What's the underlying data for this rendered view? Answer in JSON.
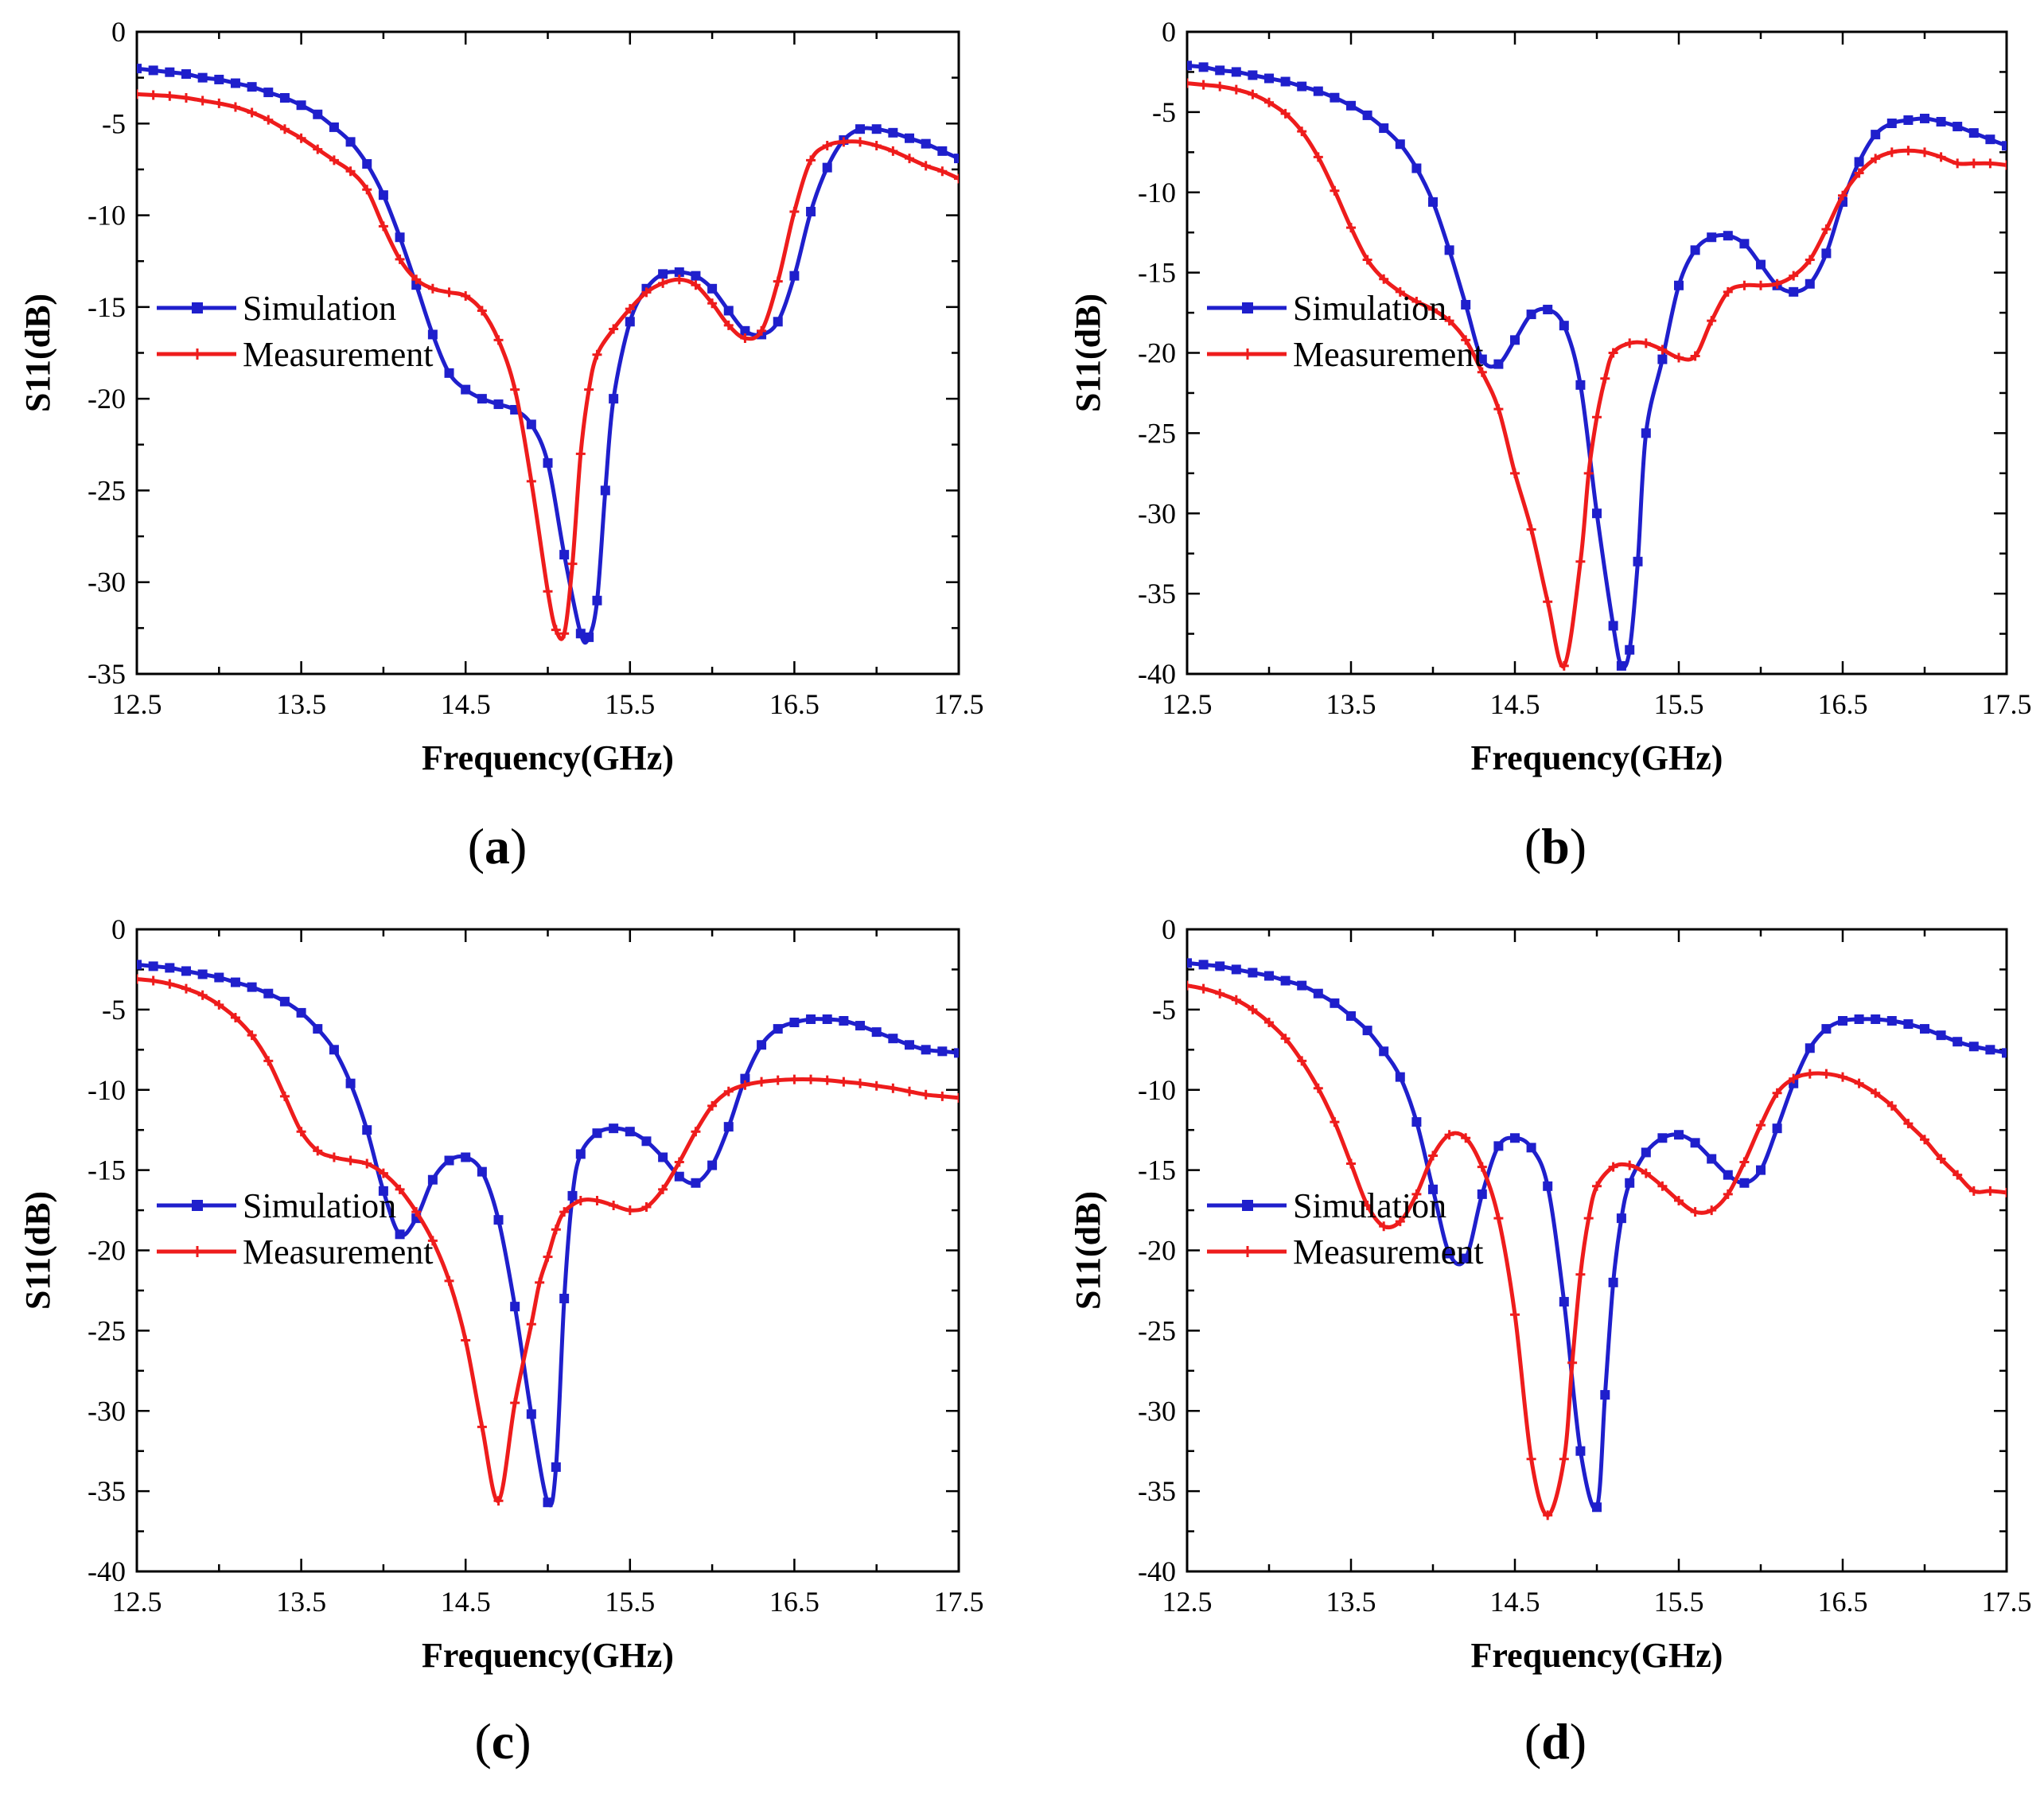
{
  "colors": {
    "simulation": "#1f1fcc",
    "measurement": "#ee1c1c"
  },
  "chart_data": [
    {
      "id": "a",
      "type": "line",
      "panel_label": "a",
      "xlabel": "Frequency(GHz)",
      "ylabel": "S11(dB)",
      "xlim": [
        12.5,
        17.5
      ],
      "ylim": [
        -35,
        0
      ],
      "xticks": [
        "12.5",
        "13.5",
        "14.5",
        "15.5",
        "16.5",
        "17.5"
      ],
      "yticks": [
        "0",
        "-5",
        "-10",
        "-15",
        "-20",
        "-25",
        "-30",
        "-35"
      ],
      "legend_position": "lower-left",
      "series": [
        {
          "name": "Simulation",
          "marker": "square",
          "x": [
            12.5,
            12.6,
            12.7,
            12.8,
            12.9,
            13.0,
            13.1,
            13.2,
            13.3,
            13.4,
            13.5,
            13.6,
            13.7,
            13.8,
            13.9,
            14.0,
            14.1,
            14.2,
            14.3,
            14.4,
            14.5,
            14.6,
            14.7,
            14.8,
            14.9,
            15.0,
            15.1,
            15.2,
            15.25,
            15.3,
            15.35,
            15.4,
            15.5,
            15.6,
            15.7,
            15.8,
            15.9,
            16.0,
            16.1,
            16.2,
            16.3,
            16.4,
            16.5,
            16.6,
            16.7,
            16.8,
            16.9,
            17.0,
            17.1,
            17.2,
            17.3,
            17.4,
            17.5
          ],
          "y": [
            -2.0,
            -2.1,
            -2.2,
            -2.3,
            -2.5,
            -2.6,
            -2.8,
            -3.0,
            -3.3,
            -3.6,
            -4.0,
            -4.5,
            -5.2,
            -6.0,
            -7.2,
            -8.9,
            -11.2,
            -13.8,
            -16.5,
            -18.6,
            -19.5,
            -20.0,
            -20.3,
            -20.6,
            -21.4,
            -23.5,
            -28.5,
            -32.8,
            -33.0,
            -31.0,
            -25.0,
            -20.0,
            -15.8,
            -14.0,
            -13.2,
            -13.1,
            -13.3,
            -14.0,
            -15.2,
            -16.3,
            -16.5,
            -15.8,
            -13.3,
            -9.8,
            -7.4,
            -5.9,
            -5.3,
            -5.3,
            -5.5,
            -5.8,
            -6.1,
            -6.5,
            -6.9
          ]
        },
        {
          "name": "Measurement",
          "marker": "plus",
          "x": [
            12.5,
            12.6,
            12.7,
            12.8,
            12.9,
            13.0,
            13.1,
            13.2,
            13.3,
            13.4,
            13.5,
            13.6,
            13.7,
            13.8,
            13.9,
            14.0,
            14.1,
            14.2,
            14.3,
            14.4,
            14.5,
            14.6,
            14.7,
            14.8,
            14.9,
            15.0,
            15.05,
            15.1,
            15.15,
            15.2,
            15.25,
            15.3,
            15.4,
            15.5,
            15.6,
            15.7,
            15.8,
            15.9,
            16.0,
            16.1,
            16.2,
            16.3,
            16.4,
            16.5,
            16.6,
            16.7,
            16.8,
            16.9,
            17.0,
            17.1,
            17.2,
            17.3,
            17.4,
            17.5
          ],
          "y": [
            -3.4,
            -3.45,
            -3.5,
            -3.6,
            -3.75,
            -3.9,
            -4.1,
            -4.4,
            -4.8,
            -5.3,
            -5.8,
            -6.4,
            -7.0,
            -7.6,
            -8.6,
            -10.6,
            -12.4,
            -13.5,
            -14.0,
            -14.2,
            -14.4,
            -15.2,
            -16.8,
            -19.5,
            -24.5,
            -30.5,
            -32.6,
            -32.8,
            -29.0,
            -23.0,
            -19.5,
            -17.6,
            -16.2,
            -15.1,
            -14.2,
            -13.7,
            -13.5,
            -13.8,
            -14.8,
            -16.0,
            -16.7,
            -16.3,
            -13.6,
            -9.8,
            -7.0,
            -6.2,
            -6.0,
            -6.0,
            -6.2,
            -6.5,
            -6.9,
            -7.3,
            -7.6,
            -8.0
          ]
        }
      ]
    },
    {
      "id": "b",
      "type": "line",
      "panel_label": "b",
      "xlabel": "Frequency(GHz)",
      "ylabel": "S11(dB)",
      "xlim": [
        12.5,
        17.5
      ],
      "ylim": [
        -40,
        0
      ],
      "xticks": [
        "12.5",
        "13.5",
        "14.5",
        "15.5",
        "16.5",
        "17.5"
      ],
      "yticks": [
        "0",
        "-5",
        "-10",
        "-15",
        "-20",
        "-25",
        "-30",
        "-35",
        "-40"
      ],
      "legend_position": "lower-left",
      "series": [
        {
          "name": "Simulation",
          "marker": "square",
          "x": [
            12.5,
            12.6,
            12.7,
            12.8,
            12.9,
            13.0,
            13.1,
            13.2,
            13.3,
            13.4,
            13.5,
            13.6,
            13.7,
            13.8,
            13.9,
            14.0,
            14.1,
            14.2,
            14.3,
            14.4,
            14.5,
            14.6,
            14.7,
            14.8,
            14.9,
            15.0,
            15.1,
            15.15,
            15.2,
            15.25,
            15.3,
            15.4,
            15.5,
            15.6,
            15.7,
            15.8,
            15.9,
            16.0,
            16.1,
            16.2,
            16.3,
            16.4,
            16.5,
            16.6,
            16.7,
            16.8,
            16.9,
            17.0,
            17.1,
            17.2,
            17.3,
            17.4,
            17.5
          ],
          "y": [
            -2.1,
            -2.2,
            -2.4,
            -2.5,
            -2.7,
            -2.9,
            -3.1,
            -3.4,
            -3.7,
            -4.1,
            -4.6,
            -5.2,
            -6.0,
            -7.0,
            -8.5,
            -10.6,
            -13.6,
            -17.0,
            -20.4,
            -20.7,
            -19.2,
            -17.6,
            -17.3,
            -18.3,
            -22.0,
            -30.0,
            -37.0,
            -39.5,
            -38.5,
            -33.0,
            -25.0,
            -20.4,
            -15.8,
            -13.6,
            -12.8,
            -12.7,
            -13.2,
            -14.5,
            -15.8,
            -16.2,
            -15.7,
            -13.8,
            -10.6,
            -8.1,
            -6.4,
            -5.7,
            -5.5,
            -5.4,
            -5.6,
            -5.9,
            -6.3,
            -6.7,
            -7.1
          ]
        },
        {
          "name": "Measurement",
          "marker": "plus",
          "x": [
            12.5,
            12.6,
            12.7,
            12.8,
            12.9,
            13.0,
            13.1,
            13.2,
            13.3,
            13.4,
            13.5,
            13.6,
            13.7,
            13.8,
            13.9,
            14.0,
            14.1,
            14.2,
            14.3,
            14.4,
            14.5,
            14.6,
            14.7,
            14.8,
            14.9,
            14.95,
            15.0,
            15.05,
            15.1,
            15.2,
            15.3,
            15.4,
            15.5,
            15.6,
            15.7,
            15.8,
            15.9,
            16.0,
            16.1,
            16.2,
            16.3,
            16.4,
            16.5,
            16.6,
            16.7,
            16.8,
            16.9,
            17.0,
            17.1,
            17.2,
            17.3,
            17.4,
            17.5
          ],
          "y": [
            -3.2,
            -3.3,
            -3.4,
            -3.6,
            -3.9,
            -4.4,
            -5.1,
            -6.2,
            -7.8,
            -9.9,
            -12.2,
            -14.2,
            -15.4,
            -16.2,
            -16.8,
            -17.3,
            -18.0,
            -19.2,
            -21.2,
            -23.5,
            -27.5,
            -31.0,
            -35.5,
            -39.5,
            -33.0,
            -27.5,
            -24.0,
            -21.6,
            -20.0,
            -19.4,
            -19.4,
            -19.8,
            -20.3,
            -20.2,
            -18.0,
            -16.2,
            -15.8,
            -15.8,
            -15.7,
            -15.2,
            -14.2,
            -12.3,
            -10.2,
            -8.8,
            -7.9,
            -7.5,
            -7.4,
            -7.5,
            -7.8,
            -8.2,
            -8.2,
            -8.2,
            -8.3
          ]
        }
      ]
    },
    {
      "id": "c",
      "type": "line",
      "panel_label": "c",
      "xlabel": "Frequency(GHz)",
      "ylabel": "S11(dB)",
      "xlim": [
        12.5,
        17.5
      ],
      "ylim": [
        -40,
        0
      ],
      "xticks": [
        "12.5",
        "13.5",
        "14.5",
        "15.5",
        "16.5",
        "17.5"
      ],
      "yticks": [
        "0",
        "-5",
        "-10",
        "-15",
        "-20",
        "-25",
        "-30",
        "-35",
        "-40"
      ],
      "legend_position": "lower-left",
      "series": [
        {
          "name": "Simulation",
          "marker": "square",
          "x": [
            12.5,
            12.6,
            12.7,
            12.8,
            12.9,
            13.0,
            13.1,
            13.2,
            13.3,
            13.4,
            13.5,
            13.6,
            13.7,
            13.8,
            13.9,
            14.0,
            14.1,
            14.2,
            14.3,
            14.4,
            14.5,
            14.6,
            14.7,
            14.8,
            14.9,
            15.0,
            15.05,
            15.1,
            15.15,
            15.2,
            15.3,
            15.4,
            15.5,
            15.6,
            15.7,
            15.8,
            15.9,
            16.0,
            16.1,
            16.2,
            16.3,
            16.4,
            16.5,
            16.6,
            16.7,
            16.8,
            16.9,
            17.0,
            17.1,
            17.2,
            17.3,
            17.4,
            17.5
          ],
          "y": [
            -2.2,
            -2.3,
            -2.4,
            -2.6,
            -2.8,
            -3.0,
            -3.3,
            -3.6,
            -4.0,
            -4.5,
            -5.2,
            -6.2,
            -7.5,
            -9.6,
            -12.5,
            -16.3,
            -19.0,
            -18.0,
            -15.6,
            -14.4,
            -14.2,
            -15.1,
            -18.1,
            -23.5,
            -30.2,
            -35.7,
            -33.5,
            -23.0,
            -16.6,
            -14.0,
            -12.7,
            -12.4,
            -12.6,
            -13.2,
            -14.2,
            -15.4,
            -15.8,
            -14.7,
            -12.3,
            -9.3,
            -7.2,
            -6.2,
            -5.8,
            -5.6,
            -5.6,
            -5.7,
            -6.0,
            -6.4,
            -6.8,
            -7.2,
            -7.5,
            -7.6,
            -7.7
          ]
        },
        {
          "name": "Measurement",
          "marker": "plus",
          "x": [
            12.5,
            12.6,
            12.7,
            12.8,
            12.9,
            13.0,
            13.1,
            13.2,
            13.3,
            13.4,
            13.5,
            13.6,
            13.7,
            13.8,
            13.9,
            14.0,
            14.1,
            14.2,
            14.3,
            14.4,
            14.5,
            14.6,
            14.7,
            14.8,
            14.9,
            14.95,
            15.0,
            15.05,
            15.1,
            15.2,
            15.3,
            15.4,
            15.5,
            15.6,
            15.7,
            15.8,
            15.9,
            16.0,
            16.1,
            16.2,
            16.3,
            16.4,
            16.5,
            16.6,
            16.7,
            16.8,
            16.9,
            17.0,
            17.1,
            17.2,
            17.3,
            17.4,
            17.5
          ],
          "y": [
            -3.1,
            -3.2,
            -3.4,
            -3.7,
            -4.1,
            -4.7,
            -5.5,
            -6.6,
            -8.2,
            -10.4,
            -12.6,
            -13.8,
            -14.2,
            -14.4,
            -14.6,
            -15.2,
            -16.2,
            -17.6,
            -19.4,
            -21.9,
            -25.6,
            -31.0,
            -35.6,
            -29.5,
            -24.6,
            -22.0,
            -20.4,
            -18.7,
            -17.6,
            -16.9,
            -16.9,
            -17.2,
            -17.5,
            -17.3,
            -16.2,
            -14.5,
            -12.6,
            -11.0,
            -10.1,
            -9.7,
            -9.5,
            -9.4,
            -9.35,
            -9.35,
            -9.4,
            -9.5,
            -9.6,
            -9.75,
            -9.9,
            -10.1,
            -10.3,
            -10.4,
            -10.5
          ]
        }
      ]
    },
    {
      "id": "d",
      "type": "line",
      "panel_label": "d",
      "xlabel": "Frequency(GHz)",
      "ylabel": "S11(dB)",
      "xlim": [
        12.5,
        17.5
      ],
      "ylim": [
        -40,
        0
      ],
      "xticks": [
        "12.5",
        "13.5",
        "14.5",
        "15.5",
        "16.5",
        "17.5"
      ],
      "yticks": [
        "0",
        "-5",
        "-10",
        "-15",
        "-20",
        "-25",
        "-30",
        "-35",
        "-40"
      ],
      "legend_position": "lower-left",
      "series": [
        {
          "name": "Simulation",
          "marker": "square",
          "x": [
            12.5,
            12.6,
            12.7,
            12.8,
            12.9,
            13.0,
            13.1,
            13.2,
            13.3,
            13.4,
            13.5,
            13.6,
            13.7,
            13.8,
            13.9,
            14.0,
            14.1,
            14.2,
            14.3,
            14.4,
            14.5,
            14.6,
            14.7,
            14.8,
            14.9,
            15.0,
            15.05,
            15.1,
            15.15,
            15.2,
            15.3,
            15.4,
            15.5,
            15.6,
            15.7,
            15.8,
            15.9,
            16.0,
            16.1,
            16.2,
            16.3,
            16.4,
            16.5,
            16.6,
            16.7,
            16.8,
            16.9,
            17.0,
            17.1,
            17.2,
            17.3,
            17.4,
            17.5
          ],
          "y": [
            -2.1,
            -2.2,
            -2.3,
            -2.5,
            -2.7,
            -2.9,
            -3.2,
            -3.5,
            -4.0,
            -4.6,
            -5.4,
            -6.3,
            -7.6,
            -9.2,
            -12.0,
            -16.2,
            -20.2,
            -20.5,
            -16.5,
            -13.5,
            -13.0,
            -13.6,
            -16.0,
            -23.2,
            -32.5,
            -36.0,
            -29.0,
            -22.0,
            -18.0,
            -15.8,
            -13.9,
            -13.0,
            -12.8,
            -13.3,
            -14.3,
            -15.3,
            -15.8,
            -15.0,
            -12.4,
            -9.6,
            -7.4,
            -6.2,
            -5.7,
            -5.6,
            -5.6,
            -5.7,
            -5.9,
            -6.2,
            -6.6,
            -7.0,
            -7.3,
            -7.5,
            -7.7
          ]
        },
        {
          "name": "Measurement",
          "marker": "plus",
          "x": [
            12.5,
            12.6,
            12.7,
            12.8,
            12.9,
            13.0,
            13.1,
            13.2,
            13.3,
            13.4,
            13.5,
            13.6,
            13.7,
            13.8,
            13.9,
            14.0,
            14.1,
            14.2,
            14.3,
            14.4,
            14.5,
            14.6,
            14.7,
            14.8,
            14.85,
            14.9,
            14.95,
            15.0,
            15.1,
            15.2,
            15.3,
            15.4,
            15.5,
            15.6,
            15.7,
            15.8,
            15.9,
            16.0,
            16.1,
            16.2,
            16.3,
            16.4,
            16.5,
            16.6,
            16.7,
            16.8,
            16.9,
            17.0,
            17.1,
            17.2,
            17.3,
            17.4,
            17.5
          ],
          "y": [
            -3.5,
            -3.7,
            -4.0,
            -4.4,
            -5.0,
            -5.8,
            -6.8,
            -8.2,
            -9.9,
            -12.0,
            -14.6,
            -17.2,
            -18.5,
            -18.2,
            -16.5,
            -14.1,
            -12.8,
            -13.0,
            -14.8,
            -18.0,
            -24.0,
            -33.0,
            -36.5,
            -33.0,
            -27.0,
            -21.5,
            -18.0,
            -16.0,
            -14.8,
            -14.7,
            -15.2,
            -16.0,
            -16.9,
            -17.6,
            -17.5,
            -16.5,
            -14.5,
            -12.2,
            -10.2,
            -9.3,
            -9.0,
            -9.0,
            -9.2,
            -9.6,
            -10.2,
            -11.0,
            -12.1,
            -13.1,
            -14.3,
            -15.3,
            -16.3,
            -16.3,
            -16.4
          ]
        }
      ]
    }
  ]
}
